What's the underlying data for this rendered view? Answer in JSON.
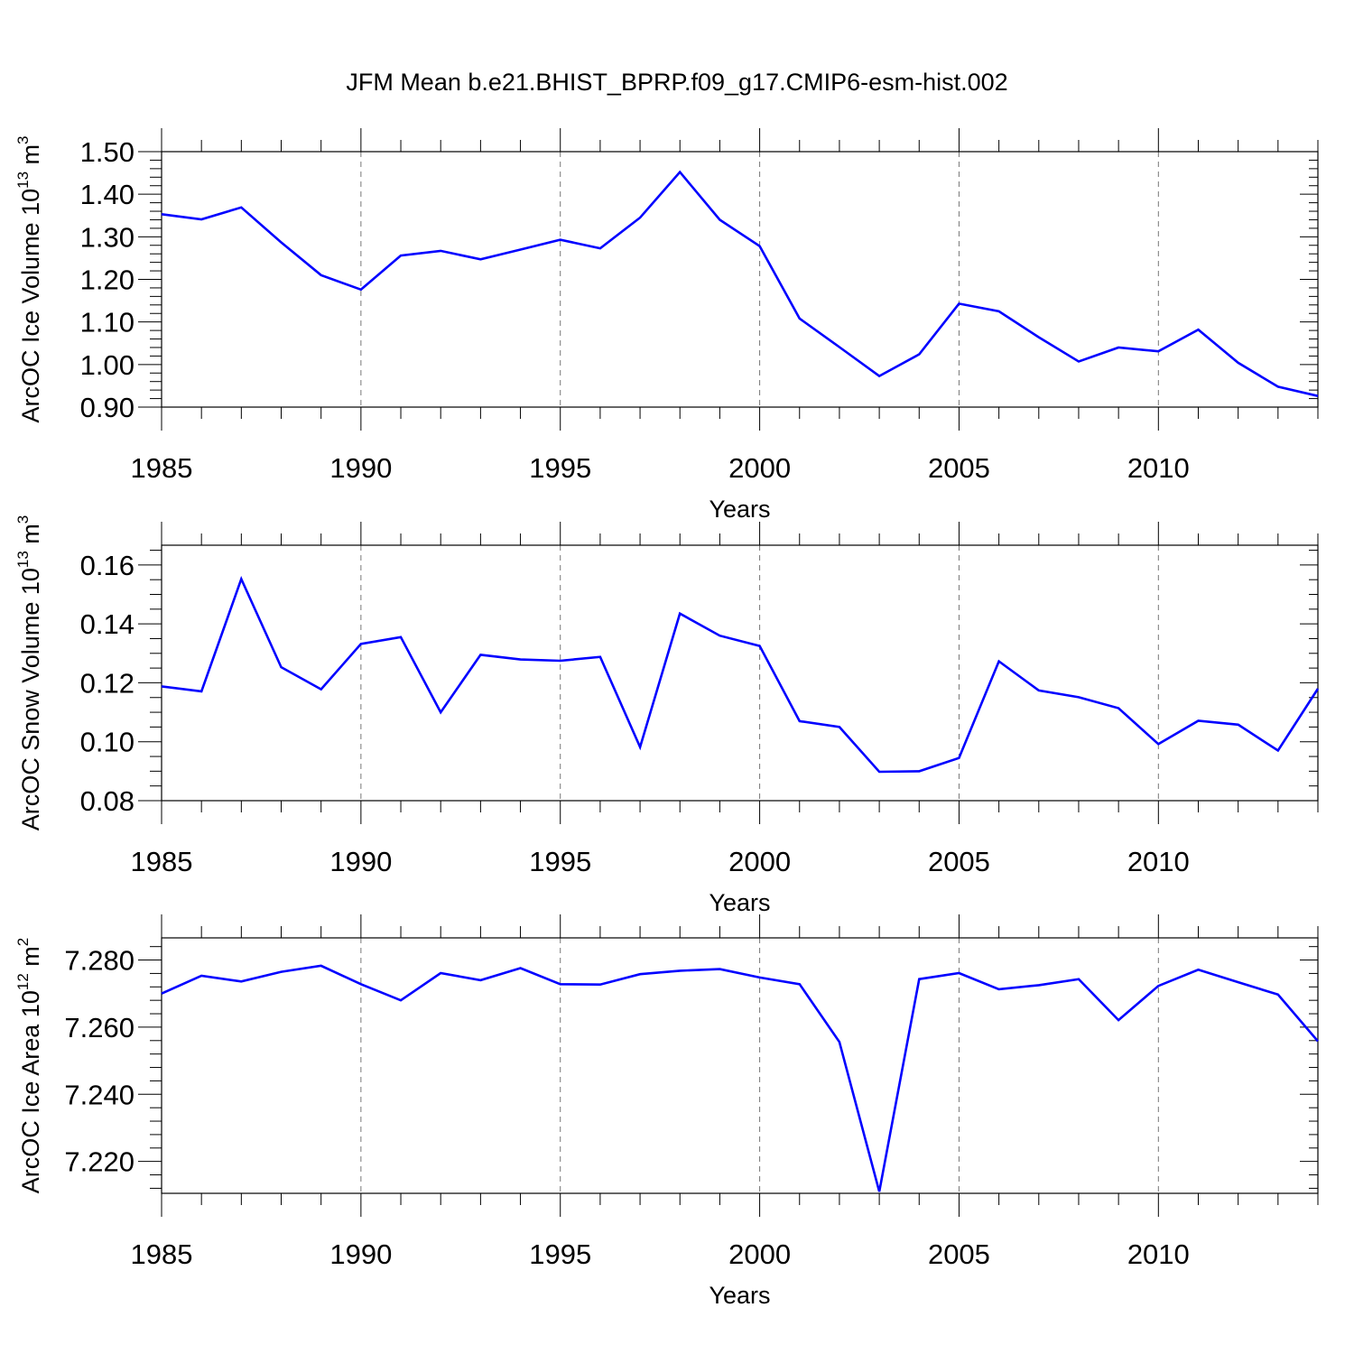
{
  "title": "JFM Mean b.e21.BHIST_BPRP.f09_g17.CMIP6-esm-hist.002",
  "line_color": "#0000ff",
  "chart_data": [
    {
      "type": "line",
      "name": "ice-volume",
      "ylabel": {
        "main": "ArcOC Ice Volume 10",
        "exp": "13",
        "unit": " m",
        "unit_exp": "3"
      },
      "xlabel": "Years",
      "xlim": [
        1985,
        2014
      ],
      "ylim": [
        0.9,
        1.5
      ],
      "yticks": [
        0.9,
        1.0,
        1.1,
        1.2,
        1.3,
        1.4,
        1.5
      ],
      "ytick_labels": [
        "0.90",
        "1.00",
        "1.10",
        "1.20",
        "1.30",
        "1.40",
        "1.50"
      ],
      "yminor_step": 0.02,
      "xticks": [
        1985,
        1990,
        1995,
        2000,
        2005,
        2010
      ],
      "xtick_labels": [
        "1985",
        "1990",
        "1995",
        "2000",
        "2005",
        "2010"
      ],
      "x": [
        1985,
        1986,
        1987,
        1988,
        1989,
        1990,
        1991,
        1992,
        1993,
        1994,
        1995,
        1996,
        1997,
        1998,
        1999,
        2000,
        2001,
        2002,
        2003,
        2004,
        2005,
        2006,
        2007,
        2008,
        2009,
        2010,
        2011,
        2012,
        2013,
        2014
      ],
      "y": [
        1.353,
        1.341,
        1.369,
        1.287,
        1.21,
        1.176,
        1.256,
        1.267,
        1.247,
        1.27,
        1.293,
        1.273,
        1.345,
        1.452,
        1.34,
        1.278,
        1.108,
        1.041,
        0.973,
        1.024,
        1.143,
        1.125,
        1.064,
        1.007,
        1.04,
        1.031,
        1.082,
        1.004,
        0.948,
        0.926
      ],
      "grid": "dashed vertical at major x ticks"
    },
    {
      "type": "line",
      "name": "snow-volume",
      "ylabel": {
        "main": "ArcOC Snow Volume 10",
        "exp": "13",
        "unit": " m",
        "unit_exp": "3"
      },
      "xlabel": "Years",
      "xlim": [
        1985,
        2014
      ],
      "ylim": [
        0.08,
        0.1667
      ],
      "yticks": [
        0.08,
        0.1,
        0.12,
        0.14,
        0.16
      ],
      "ytick_labels": [
        "0.08",
        "0.10",
        "0.12",
        "0.14",
        "0.16"
      ],
      "yminor_step": 0.005,
      "xticks": [
        1985,
        1990,
        1995,
        2000,
        2005,
        2010
      ],
      "xtick_labels": [
        "1985",
        "1990",
        "1995",
        "2000",
        "2005",
        "2010"
      ],
      "x": [
        1985,
        1986,
        1987,
        1988,
        1989,
        1990,
        1991,
        1992,
        1993,
        1994,
        1995,
        1996,
        1997,
        1998,
        1999,
        2000,
        2001,
        2002,
        2003,
        2004,
        2005,
        2006,
        2007,
        2008,
        2009,
        2010,
        2011,
        2012,
        2013,
        2014
      ],
      "y": [
        0.1188,
        0.1171,
        0.1552,
        0.1253,
        0.1178,
        0.1332,
        0.1355,
        0.11,
        0.1295,
        0.1279,
        0.1275,
        0.1288,
        0.0982,
        0.1435,
        0.136,
        0.1325,
        0.107,
        0.105,
        0.0898,
        0.09,
        0.0945,
        0.1273,
        0.1174,
        0.1151,
        0.1114,
        0.0992,
        0.1071,
        0.1058,
        0.097,
        0.118
      ],
      "grid": "dashed vertical at major x ticks"
    },
    {
      "type": "line",
      "name": "ice-area",
      "ylabel": {
        "main": "ArcOC Ice Area 10",
        "exp": "12",
        "unit": " m",
        "unit_exp": "2"
      },
      "xlabel": "Years",
      "xlim": [
        1985,
        2014
      ],
      "ylim": [
        7.2105,
        7.2866
      ],
      "yticks": [
        7.22,
        7.24,
        7.26,
        7.28
      ],
      "ytick_labels": [
        "7.220",
        "7.240",
        "7.260",
        "7.280"
      ],
      "yminor_step": 0.004,
      "xticks": [
        1985,
        1990,
        1995,
        2000,
        2005,
        2010
      ],
      "xtick_labels": [
        "1985",
        "1990",
        "1995",
        "2000",
        "2005",
        "2010"
      ],
      "x": [
        1985,
        1986,
        1987,
        1988,
        1989,
        1990,
        1991,
        1992,
        1993,
        1994,
        1995,
        1996,
        1997,
        1998,
        1999,
        2000,
        2001,
        2002,
        2003,
        2004,
        2005,
        2006,
        2007,
        2008,
        2009,
        2010,
        2011,
        2012,
        2013,
        2014
      ],
      "y": [
        7.27,
        7.2753,
        7.2736,
        7.2765,
        7.2783,
        7.2728,
        7.268,
        7.2761,
        7.274,
        7.2776,
        7.2728,
        7.2727,
        7.2758,
        7.2768,
        7.2773,
        7.2748,
        7.2728,
        7.2556,
        7.211,
        7.2743,
        7.2761,
        7.2713,
        7.2725,
        7.2743,
        7.2621,
        7.2723,
        7.2771,
        7.2734,
        7.2697,
        7.2558
      ],
      "grid": "dashed vertical at major x ticks"
    }
  ]
}
